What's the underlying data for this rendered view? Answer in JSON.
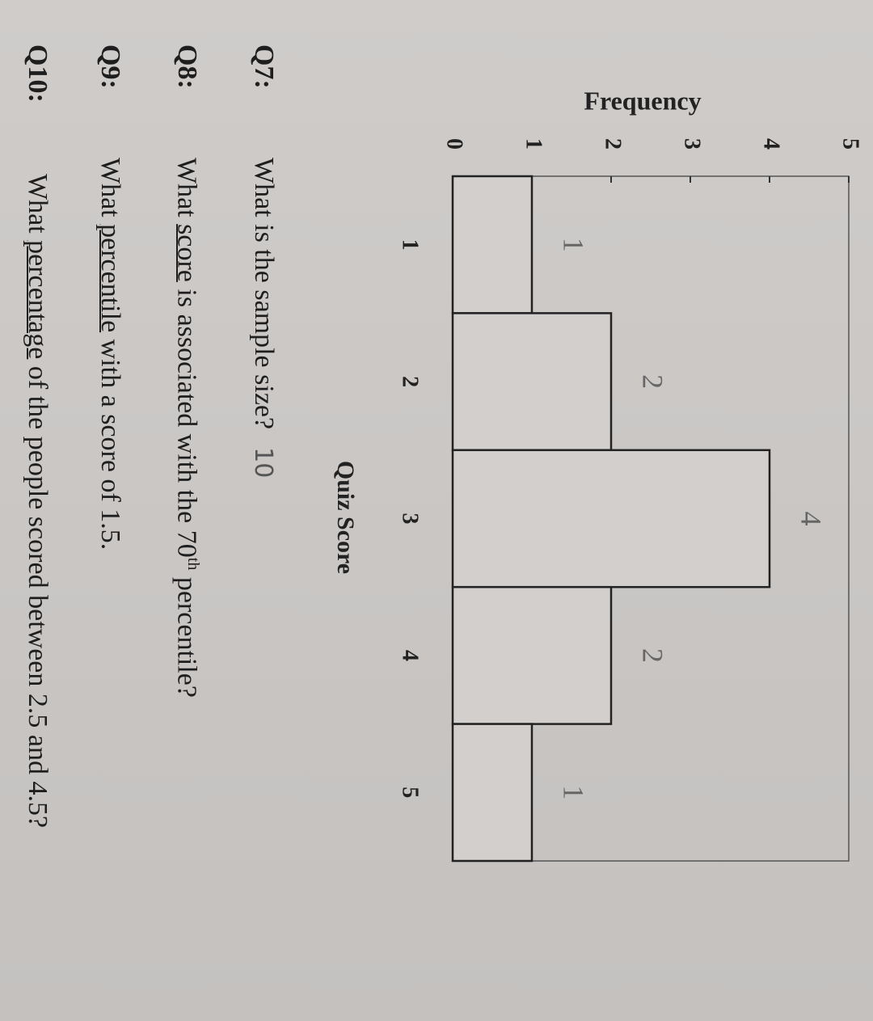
{
  "chart_data": {
    "type": "histogram",
    "xlabel": "Quiz Score",
    "ylabel": "Frequency",
    "bins": [
      0.5,
      1.5,
      2.5,
      3.5,
      4.5,
      5.5
    ],
    "values": [
      1,
      2,
      4,
      2,
      1
    ],
    "annotations": [
      "1",
      "2",
      "4",
      "2",
      "1"
    ],
    "xlim": [
      0.5,
      5.5
    ],
    "xticks": [
      1,
      2,
      3,
      4,
      5
    ],
    "ylim": [
      0,
      5
    ],
    "yticks": [
      0,
      1,
      2,
      3,
      4,
      5
    ],
    "color": "#d2cfcc"
  },
  "questions": [
    {
      "label": "Q7:",
      "before": "What is the sample size?",
      "answer": "10"
    },
    {
      "label": "Q8:",
      "before": "What ",
      "underlined": "score",
      "after": " is associated with the 70",
      "superscript": "th",
      "end": " percentile?"
    },
    {
      "label": "Q9:",
      "before": "What ",
      "underlined": "percentile",
      "after": " with a score of 1.5."
    },
    {
      "label": "Q10:",
      "before": "What ",
      "underlined": "percentage",
      "after": " of the people scored between 2.5 and 4.5?"
    }
  ]
}
